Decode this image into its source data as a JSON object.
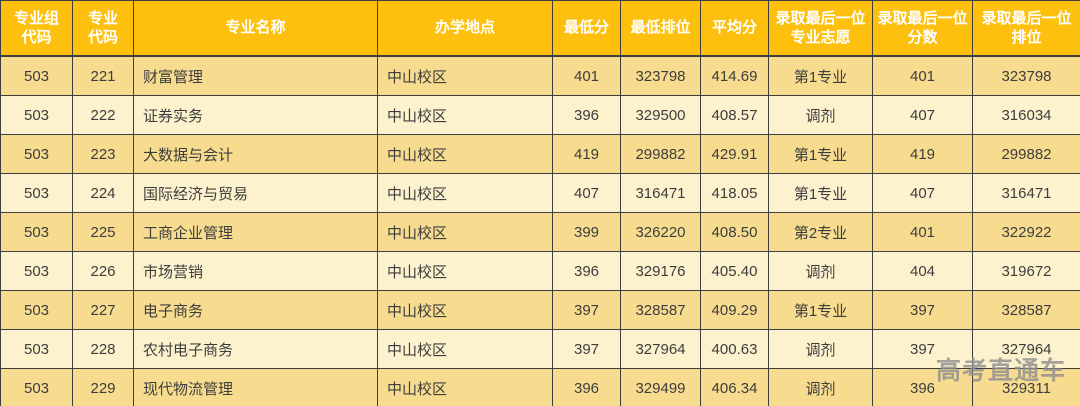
{
  "watermark": "高考直通车",
  "colors": {
    "header_bg": "#fdc00f",
    "row_odd_bg": "#f7dc8f",
    "row_even_bg": "#fcf2cd",
    "border": "#3e3e3e",
    "header_text": "#ffffff",
    "body_text": "#3d3d3d",
    "watermark_color": "#8e8e8e"
  },
  "chart_data": {
    "type": "table",
    "columns": [
      "专业组\n代码",
      "专业\n代码",
      "专业名称",
      "办学地点",
      "最低分",
      "最低排位",
      "平均分",
      "录取最后一位\n专业志愿",
      "录取最后一位\n分数",
      "录取最后一位\n排位"
    ],
    "rows": [
      [
        "503",
        "221",
        "财富管理",
        "中山校区",
        "401",
        "323798",
        "414.69",
        "第1专业",
        "401",
        "323798"
      ],
      [
        "503",
        "222",
        "证券实务",
        "中山校区",
        "396",
        "329500",
        "408.57",
        "调剂",
        "407",
        "316034"
      ],
      [
        "503",
        "223",
        "大数据与会计",
        "中山校区",
        "419",
        "299882",
        "429.91",
        "第1专业",
        "419",
        "299882"
      ],
      [
        "503",
        "224",
        "国际经济与贸易",
        "中山校区",
        "407",
        "316471",
        "418.05",
        "第1专业",
        "407",
        "316471"
      ],
      [
        "503",
        "225",
        "工商企业管理",
        "中山校区",
        "399",
        "326220",
        "408.50",
        "第2专业",
        "401",
        "322922"
      ],
      [
        "503",
        "226",
        "市场营销",
        "中山校区",
        "396",
        "329176",
        "405.40",
        "调剂",
        "404",
        "319672"
      ],
      [
        "503",
        "227",
        "电子商务",
        "中山校区",
        "397",
        "328587",
        "409.29",
        "第1专业",
        "397",
        "328587"
      ],
      [
        "503",
        "228",
        "农村电子商务",
        "中山校区",
        "397",
        "327964",
        "400.63",
        "调剂",
        "397",
        "327964"
      ],
      [
        "503",
        "229",
        "现代物流管理",
        "中山校区",
        "396",
        "329499",
        "406.34",
        "调剂",
        "396",
        "329311"
      ]
    ]
  }
}
